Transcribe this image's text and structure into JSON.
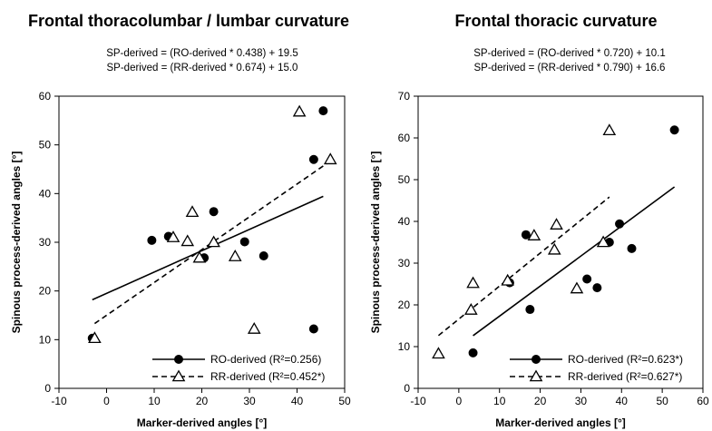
{
  "chart_data": [
    {
      "type": "scatter",
      "title": "Frontal thoracolumbar / lumbar curvature",
      "equations": [
        "SP-derived = (RO-derived * 0.438) + 19.5",
        "SP-derived = (RR-derived * 0.674) + 15.0"
      ],
      "xlabel": "Marker-derived angles [°]",
      "ylabel": "Spinous process-derived angles [°]",
      "xlim": [
        -10,
        50
      ],
      "ylim": [
        0,
        60
      ],
      "xticks": [
        "-10",
        "0",
        "10",
        "20",
        "30",
        "40",
        "50"
      ],
      "yticks": [
        "0",
        "10",
        "20",
        "30",
        "40",
        "50",
        "60"
      ],
      "legend_position": "bottom-right",
      "series": [
        {
          "name": "RO-derived",
          "r2_label": "(R²=0.256)",
          "marker": "filled-circle",
          "line": "solid",
          "slope": 0.438,
          "intercept": 19.5,
          "points": [
            [
              -3,
              10.3
            ],
            [
              9.5,
              30.4
            ],
            [
              13,
              31.2
            ],
            [
              20.5,
              26.8
            ],
            [
              22.5,
              36.3
            ],
            [
              29,
              30.1
            ],
            [
              33,
              27.2
            ],
            [
              43.5,
              12.2
            ],
            [
              43.5,
              47
            ],
            [
              45.5,
              57
            ]
          ]
        },
        {
          "name": "RR-derived",
          "r2_label": "(R²=0.452*)",
          "marker": "open-triangle",
          "line": "dashed",
          "slope": 0.674,
          "intercept": 15.0,
          "points": [
            [
              -2.5,
              10.3
            ],
            [
              14,
              31
            ],
            [
              17,
              30.2
            ],
            [
              18,
              36.2
            ],
            [
              19.5,
              26.8
            ],
            [
              22.5,
              30
            ],
            [
              27,
              27.1
            ],
            [
              31,
              12.2
            ],
            [
              40.5,
              56.8
            ],
            [
              47,
              47
            ]
          ]
        }
      ]
    },
    {
      "type": "scatter",
      "title": "Frontal thoracic curvature",
      "equations": [
        "SP-derived = (RO-derived * 0.720) + 10.1",
        "SP-derived = (RR-derived * 0.790) + 16.6"
      ],
      "xlabel": "Marker-derived angles [°]",
      "ylabel": "Spinous process-derived angles [°]",
      "xlim": [
        -10,
        60
      ],
      "ylim": [
        0,
        70
      ],
      "xticks": [
        "-10",
        "0",
        "10",
        "20",
        "30",
        "40",
        "50",
        "60"
      ],
      "yticks": [
        "0",
        "10",
        "20",
        "30",
        "40",
        "50",
        "60",
        "70"
      ],
      "legend_position": "bottom-right",
      "series": [
        {
          "name": "RO-derived",
          "r2_label": "(R²=0.623*)",
          "marker": "filled-circle",
          "line": "solid",
          "slope": 0.72,
          "intercept": 10.1,
          "points": [
            [
              3.5,
              8.5
            ],
            [
              12.5,
              25.3
            ],
            [
              16.5,
              36.8
            ],
            [
              17.5,
              18.9
            ],
            [
              31.5,
              26.2
            ],
            [
              34,
              24.1
            ],
            [
              37,
              35
            ],
            [
              39.5,
              39.4
            ],
            [
              42.5,
              33.5
            ],
            [
              53,
              61.9
            ]
          ]
        },
        {
          "name": "RR-derived",
          "r2_label": "(R²=0.627*)",
          "marker": "open-triangle",
          "line": "dashed",
          "slope": 0.79,
          "intercept": 16.6,
          "points": [
            [
              -5,
              8.3
            ],
            [
              3,
              18.8
            ],
            [
              3.5,
              25.2
            ],
            [
              12,
              25.8
            ],
            [
              18.5,
              36.6
            ],
            [
              23.5,
              33.2
            ],
            [
              24,
              39.2
            ],
            [
              29,
              23.9
            ],
            [
              35.5,
              35
            ],
            [
              37,
              61.8
            ]
          ]
        }
      ]
    }
  ]
}
